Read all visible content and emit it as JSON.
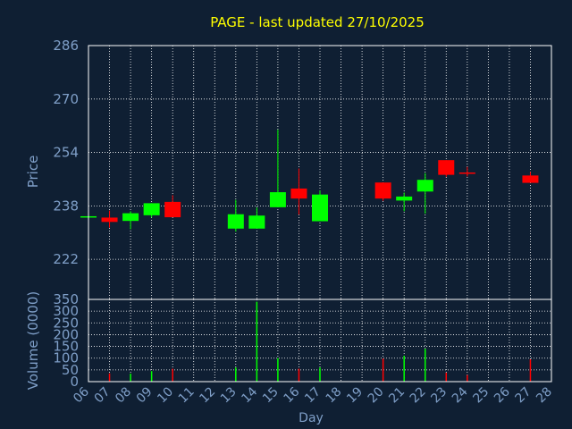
{
  "chart_data": {
    "type": "candlestick",
    "title": "PAGE - last updated 27/10/2025",
    "xlabel": "Day",
    "price_panel": {
      "ylabel": "Price",
      "yticks": [
        222,
        238,
        254,
        270,
        286
      ],
      "ylim": [
        210,
        286
      ],
      "grid": true
    },
    "volume_panel": {
      "ylabel": "Volume (0000)",
      "yticks": [
        0,
        50,
        100,
        150,
        200,
        250,
        300,
        350
      ],
      "ylim": [
        0,
        350
      ],
      "grid": true
    },
    "x_tick_labels": [
      "06",
      "07",
      "08",
      "09",
      "10",
      "11",
      "12",
      "13",
      "14",
      "15",
      "16",
      "17",
      "18",
      "19",
      "20",
      "21",
      "22",
      "23",
      "24",
      "25",
      "26",
      "27",
      "28"
    ],
    "colors": {
      "up": "#00ff00",
      "down": "#ff0000",
      "text": "#7f9fc8",
      "title": "#ffff00",
      "axis": "#ffffff",
      "background": "#0f1f33"
    },
    "candles": [
      {
        "day": "06",
        "open": 234.9,
        "high": 234.9,
        "low": 234.9,
        "close": 234.9,
        "volume": 0
      },
      {
        "day": "07",
        "open": 234.5,
        "high": 236.6,
        "low": 231.5,
        "close": 233.2,
        "volume": 35
      },
      {
        "day": "08",
        "open": 233.5,
        "high": 236.4,
        "low": 231.0,
        "close": 235.8,
        "volume": 34
      },
      {
        "day": "09",
        "open": 235.2,
        "high": 238.8,
        "low": 234.5,
        "close": 238.8,
        "volume": 45
      },
      {
        "day": "10",
        "open": 239.2,
        "high": 241.2,
        "low": 234.6,
        "close": 234.6,
        "volume": 55
      },
      {
        "day": "13",
        "open": 231.2,
        "high": 239.8,
        "low": 230.3,
        "close": 235.5,
        "volume": 60
      },
      {
        "day": "14",
        "open": 231.2,
        "high": 237.5,
        "low": 231.2,
        "close": 235.1,
        "volume": 340
      },
      {
        "day": "15",
        "open": 237.6,
        "high": 260.8,
        "low": 237.6,
        "close": 242.1,
        "volume": 100
      },
      {
        "day": "16",
        "open": 243.2,
        "high": 249.2,
        "low": 235.4,
        "close": 240.2,
        "volume": 55
      },
      {
        "day": "17",
        "open": 233.4,
        "high": 242.6,
        "low": 233.4,
        "close": 241.4,
        "volume": 60
      },
      {
        "day": "20",
        "open": 245.0,
        "high": 245.0,
        "low": 239.5,
        "close": 240.2,
        "volume": 98
      },
      {
        "day": "21",
        "open": 239.6,
        "high": 242.0,
        "low": 236.4,
        "close": 240.8,
        "volume": 110
      },
      {
        "day": "22",
        "open": 242.3,
        "high": 247.8,
        "low": 235.7,
        "close": 245.8,
        "volume": 140
      },
      {
        "day": "23",
        "open": 251.7,
        "high": 251.7,
        "low": 246.7,
        "close": 247.3,
        "volume": 38
      },
      {
        "day": "24",
        "open": 248.0,
        "high": 249.7,
        "low": 246.8,
        "close": 247.8,
        "volume": 28
      },
      {
        "day": "27",
        "open": 247.1,
        "high": 248.2,
        "low": 244.9,
        "close": 244.9,
        "volume": 95
      }
    ]
  }
}
